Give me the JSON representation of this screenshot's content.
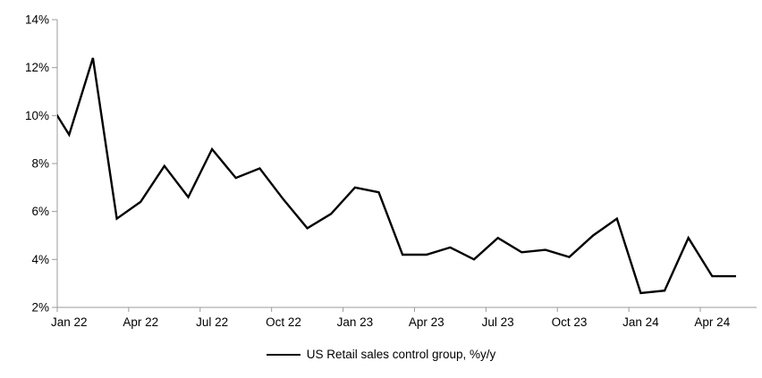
{
  "page": {
    "background": "#ffffff"
  },
  "chart_data": {
    "type": "line",
    "title": "",
    "legend_position": "bottom",
    "grid": false,
    "ylim": [
      2,
      14
    ],
    "y_tick_labels": [
      "2%",
      "4%",
      "6%",
      "8%",
      "10%",
      "12%",
      "14%"
    ],
    "x_tick_labels": [
      "Jan 22",
      "Apr 22",
      "Jul 22",
      "Oct 22",
      "Jan 23",
      "Apr 23",
      "Jul 23",
      "Oct 23",
      "Jan 24",
      "Apr 24"
    ],
    "x": [
      "Dec 21",
      "Jan 22",
      "Feb 22",
      "Mar 22",
      "Apr 22",
      "May 22",
      "Jun 22",
      "Jul 22",
      "Aug 22",
      "Sep 22",
      "Oct 22",
      "Nov 22",
      "Dec 22",
      "Jan 23",
      "Feb 23",
      "Mar 23",
      "Apr 23",
      "May 23",
      "Jun 23",
      "Jul 23",
      "Aug 23",
      "Sep 23",
      "Oct 23",
      "Nov 23",
      "Dec 23",
      "Jan 24",
      "Feb 24",
      "Mar 24",
      "Apr 24",
      "May 24"
    ],
    "series": [
      {
        "name": "US Retail sales control group, %y/y",
        "color": "#000000",
        "values": [
          10.8,
          9.2,
          12.4,
          5.7,
          6.4,
          7.9,
          6.6,
          8.6,
          7.4,
          7.8,
          6.5,
          5.3,
          5.9,
          7.0,
          6.8,
          4.2,
          4.2,
          4.5,
          4.0,
          4.9,
          4.3,
          4.4,
          4.1,
          5.0,
          5.7,
          2.6,
          2.7,
          4.9,
          3.3,
          3.3
        ]
      }
    ],
    "colors": {
      "axis": "#9b9b9b",
      "text": "#000000",
      "line": "#000000"
    }
  }
}
